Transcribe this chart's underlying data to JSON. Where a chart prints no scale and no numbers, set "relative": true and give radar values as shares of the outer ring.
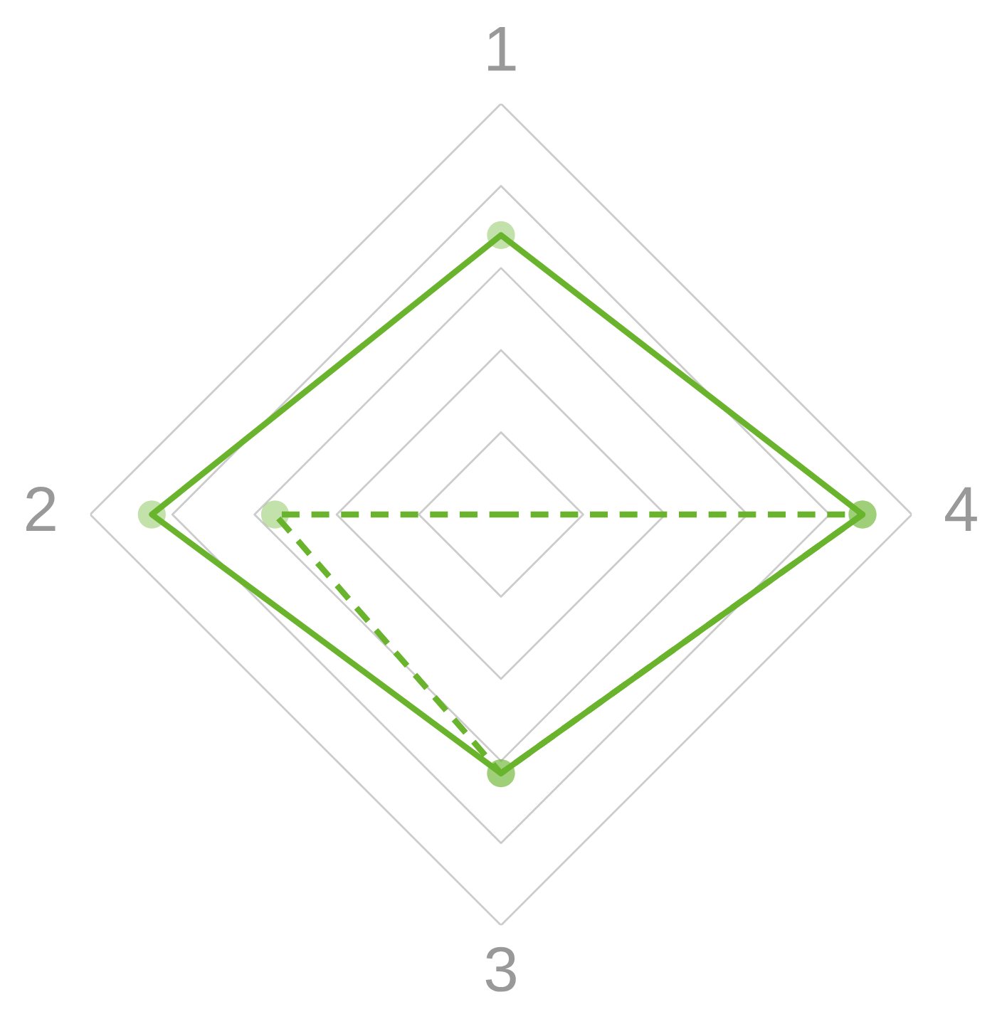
{
  "chart_data": {
    "type": "radar",
    "relative": true,
    "categories": [
      "1",
      "4",
      "3",
      "2"
    ],
    "marker": "circle",
    "grid": true,
    "series": [
      {
        "color": "#6ab42d",
        "values": [
          0.68,
          0.88,
          0.63,
          0.85
        ],
        "line_style": "solid"
      },
      {
        "color": "#6ab42d",
        "values": [
          0,
          0.88,
          0.63,
          0.55
        ],
        "line_style": "dashed"
      }
    ]
  }
}
